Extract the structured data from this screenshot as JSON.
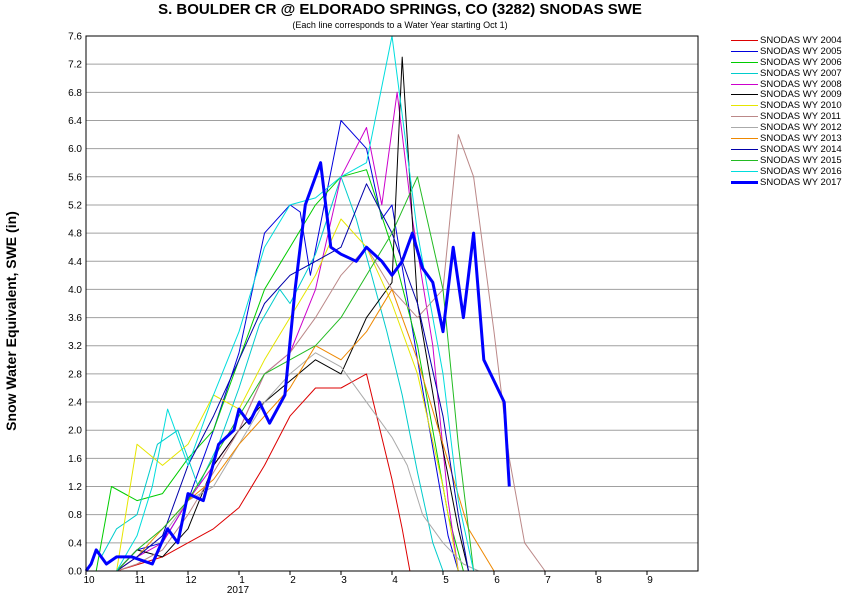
{
  "chart_data": {
    "type": "line",
    "title": "S. BOULDER CR @ ELDORADO SPRINGS, CO (3282) SNODAS SWE",
    "subtitle": "(Each line corresponds to a Water Year starting Oct 1)",
    "ylabel": "Snow Water Equivalent, SWE (in)",
    "xlabel": "",
    "ylim": [
      0,
      7.6
    ],
    "grid": true,
    "legend_position": "right",
    "x_ticks": [
      "10",
      "11",
      "12",
      "1",
      "2",
      "3",
      "4",
      "5",
      "6",
      "7",
      "8",
      "9"
    ],
    "x_year_label": "2017",
    "y_ticks": [
      "0.0",
      "0.4",
      "0.8",
      "1.2",
      "1.6",
      "2.0",
      "2.4",
      "2.8",
      "3.2",
      "3.6",
      "4.0",
      "4.4",
      "4.8",
      "5.2",
      "5.6",
      "6.0",
      "6.4",
      "6.8",
      "7.2",
      "7.6"
    ],
    "series": [
      {
        "name": "SNODAS WY 2004",
        "color": "#dd0000",
        "x": [
          0.6,
          1.5,
          2.0,
          2.5,
          3.0,
          3.5,
          4.0,
          4.5,
          5.0,
          5.5,
          5.8,
          6.0,
          6.2,
          6.35
        ],
        "values": [
          0.0,
          0.2,
          0.4,
          0.6,
          0.9,
          1.5,
          2.2,
          2.6,
          2.6,
          2.8,
          1.9,
          1.3,
          0.6,
          0.0
        ]
      },
      {
        "name": "SNODAS WY 2005",
        "color": "#0000dd",
        "x": [
          0.6,
          1.0,
          1.5,
          2.0,
          2.5,
          3.0,
          3.5,
          4.0,
          4.2,
          4.4,
          5.0,
          5.5,
          5.8,
          6.0,
          6.5,
          7.1,
          7.3
        ],
        "values": [
          0.0,
          0.3,
          0.4,
          1.0,
          2.0,
          3.1,
          4.8,
          5.2,
          5.1,
          4.2,
          6.4,
          6.0,
          5.0,
          5.2,
          3.0,
          0.5,
          0.0
        ]
      },
      {
        "name": "SNODAS WY 2006",
        "color": "#00cc00",
        "x": [
          0.2,
          0.5,
          1.0,
          1.5,
          2.0,
          2.5,
          3.0,
          3.5,
          4.0,
          4.5,
          5.0,
          5.5,
          6.0,
          6.5,
          7.1,
          7.4
        ],
        "values": [
          0.0,
          1.2,
          1.0,
          1.1,
          1.6,
          2.0,
          3.0,
          4.0,
          4.6,
          5.2,
          5.6,
          5.7,
          4.6,
          3.2,
          0.8,
          0.0
        ]
      },
      {
        "name": "SNODAS WY 2007",
        "color": "#00cccc",
        "x": [
          0.3,
          0.6,
          1.0,
          1.4,
          1.8,
          2.2,
          2.6,
          3.0,
          3.4,
          3.8,
          4.0,
          4.5,
          5.0,
          5.3,
          5.6,
          5.9,
          6.2,
          6.5,
          6.8,
          7.0
        ],
        "values": [
          0.2,
          0.6,
          0.8,
          1.8,
          2.0,
          1.2,
          1.8,
          2.6,
          3.5,
          4.0,
          3.8,
          4.5,
          5.6,
          5.0,
          4.2,
          3.4,
          2.5,
          1.4,
          0.4,
          0.0
        ]
      },
      {
        "name": "SNODAS WY 2008",
        "color": "#cc00cc",
        "x": [
          0.6,
          1.0,
          1.5,
          2.0,
          2.5,
          3.0,
          3.5,
          4.0,
          4.5,
          5.0,
          5.5,
          5.8,
          6.1,
          6.4,
          6.8,
          7.1,
          7.3
        ],
        "values": [
          0.0,
          0.2,
          0.4,
          1.0,
          1.5,
          2.0,
          2.8,
          3.1,
          4.0,
          5.6,
          6.3,
          5.2,
          6.8,
          5.0,
          3.2,
          1.0,
          0.0
        ]
      },
      {
        "name": "SNODAS WY 2009",
        "color": "#000000",
        "x": [
          0.6,
          1.0,
          1.5,
          2.0,
          2.5,
          3.0,
          3.5,
          4.0,
          4.5,
          5.0,
          5.5,
          6.0,
          6.2,
          6.5,
          6.9,
          7.3,
          7.5
        ],
        "values": [
          0.0,
          0.3,
          0.2,
          0.6,
          1.5,
          2.0,
          2.4,
          2.7,
          3.0,
          2.8,
          3.6,
          4.1,
          7.3,
          3.8,
          2.1,
          0.6,
          0.0
        ]
      },
      {
        "name": "SNODAS WY 2010",
        "color": "#e6e600",
        "x": [
          0.6,
          1.0,
          1.5,
          2.0,
          2.5,
          3.0,
          3.5,
          4.0,
          4.5,
          5.0,
          5.5,
          6.0,
          6.5,
          7.0,
          7.3
        ],
        "values": [
          0.0,
          1.8,
          1.5,
          1.8,
          2.5,
          2.3,
          3.0,
          3.6,
          4.2,
          5.0,
          4.6,
          3.8,
          2.8,
          1.2,
          0.0
        ]
      },
      {
        "name": "SNODAS WY 2011",
        "color": "#bb8888",
        "x": [
          0.6,
          1.0,
          1.5,
          2.0,
          2.5,
          3.0,
          3.5,
          4.0,
          4.5,
          5.0,
          5.5,
          6.0,
          6.5,
          7.0,
          7.3,
          7.6,
          8.0,
          8.3,
          8.6,
          9.0
        ],
        "values": [
          0.0,
          0.1,
          0.3,
          0.8,
          1.4,
          2.0,
          2.8,
          3.1,
          3.6,
          4.2,
          4.6,
          4.0,
          3.6,
          4.0,
          6.2,
          5.6,
          3.4,
          1.6,
          0.4,
          0.0
        ]
      },
      {
        "name": "SNODAS WY 2012",
        "color": "#aaaaaa",
        "x": [
          0.6,
          1.0,
          1.5,
          2.0,
          2.5,
          3.0,
          3.5,
          4.0,
          4.5,
          5.0,
          5.5,
          6.0,
          6.3,
          6.6,
          7.0,
          7.4,
          7.7
        ],
        "values": [
          0.0,
          0.2,
          0.5,
          1.0,
          1.2,
          1.8,
          2.4,
          2.8,
          3.1,
          2.9,
          2.4,
          1.9,
          1.5,
          0.8,
          0.4,
          0.1,
          0.0
        ]
      },
      {
        "name": "SNODAS WY 2013",
        "color": "#ee8800",
        "x": [
          0.6,
          1.0,
          1.5,
          2.0,
          2.5,
          3.0,
          3.5,
          4.0,
          4.5,
          5.0,
          5.5,
          6.0,
          6.5,
          7.0,
          7.5,
          8.0
        ],
        "values": [
          0.0,
          0.2,
          0.6,
          1.0,
          1.3,
          1.8,
          2.2,
          2.6,
          3.2,
          3.0,
          3.4,
          4.0,
          3.0,
          1.8,
          0.6,
          0.0
        ]
      },
      {
        "name": "SNODAS WY 2014",
        "color": "#0000aa",
        "x": [
          0.6,
          1.0,
          1.5,
          2.0,
          2.5,
          3.0,
          3.5,
          4.0,
          4.5,
          5.0,
          5.5,
          6.0,
          6.5,
          7.0,
          7.3,
          7.5
        ],
        "values": [
          0.0,
          0.2,
          0.5,
          1.5,
          2.2,
          3.0,
          3.8,
          4.2,
          4.4,
          4.6,
          5.5,
          4.8,
          3.8,
          2.2,
          0.8,
          0.0
        ]
      },
      {
        "name": "SNODAS WY 2015",
        "color": "#22bb22",
        "x": [
          0.6,
          1.0,
          1.5,
          2.0,
          2.5,
          3.0,
          3.5,
          4.0,
          4.5,
          5.0,
          5.5,
          6.0,
          6.5,
          7.0,
          7.3,
          7.6
        ],
        "values": [
          0.0,
          0.3,
          0.6,
          1.0,
          1.6,
          2.2,
          2.8,
          3.0,
          3.2,
          3.6,
          4.2,
          4.8,
          5.6,
          4.0,
          1.8,
          0.0
        ]
      },
      {
        "name": "SNODAS WY 2016",
        "color": "#00dddd",
        "x": [
          0.6,
          1.0,
          1.3,
          1.6,
          2.0,
          2.5,
          3.0,
          3.5,
          4.0,
          4.5,
          5.0,
          5.5,
          6.0,
          6.5,
          7.0,
          7.3,
          7.6
        ],
        "values": [
          0.0,
          0.5,
          1.2,
          2.3,
          1.5,
          2.5,
          3.4,
          4.6,
          5.2,
          5.3,
          5.6,
          5.8,
          7.6,
          4.8,
          2.8,
          1.0,
          0.0
        ]
      },
      {
        "name": "SNODAS WY 2017",
        "color": "#0000ff",
        "x": [
          0.0,
          0.1,
          0.2,
          0.4,
          0.6,
          0.9,
          1.3,
          1.6,
          1.8,
          2.0,
          2.3,
          2.6,
          2.9,
          3.0,
          3.2,
          3.4,
          3.6,
          3.9,
          4.1,
          4.3,
          4.6,
          4.8,
          5.0,
          5.3,
          5.5,
          5.8,
          6.0,
          6.2,
          6.4,
          6.6,
          6.8,
          7.0,
          7.2,
          7.4,
          7.6,
          7.8,
          8.0,
          8.2,
          8.3
        ],
        "values": [
          0.0,
          0.1,
          0.3,
          0.1,
          0.2,
          0.2,
          0.1,
          0.6,
          0.4,
          1.1,
          1.0,
          1.8,
          2.0,
          2.3,
          2.1,
          2.4,
          2.1,
          2.5,
          4.0,
          5.2,
          5.8,
          4.6,
          4.5,
          4.4,
          4.6,
          4.4,
          4.2,
          4.4,
          4.8,
          4.3,
          4.1,
          3.4,
          4.6,
          3.6,
          4.8,
          3.0,
          2.7,
          2.4,
          1.2
        ]
      }
    ]
  }
}
